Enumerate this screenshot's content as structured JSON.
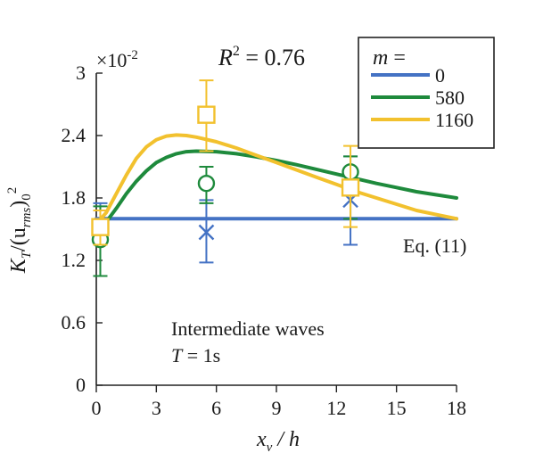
{
  "chart_data": {
    "type": "line",
    "xlabel_main": "x",
    "xlabel_sub": "v",
    "xlabel_rest": " / h",
    "ylabel_main": "K",
    "ylabel_sub": "T",
    "ylabel_mid": "/(u",
    "ylabel_sub2": "rms",
    "ylabel_end": ")",
    "ylabel_sub3": "0",
    "ylabel_sup": "2",
    "y_multiplier_base": "×10",
    "y_multiplier_exp": "-2",
    "r2_label_main": "R",
    "r2_label_sup": "2",
    "r2_label_rest": " = 0.76",
    "xlim": [
      0,
      18
    ],
    "ylim": [
      0,
      3
    ],
    "xticks": [
      "0",
      "3",
      "6",
      "9",
      "12",
      "15",
      "18"
    ],
    "yticks": [
      "0",
      "0.6",
      "1.2",
      "1.8",
      "2.4",
      "3"
    ],
    "legend": {
      "title_main": "m",
      "title_rest": " =",
      "placement": "top-right"
    },
    "series": [
      {
        "name": "0",
        "color": "#4472c4",
        "curve": [
          [
            0,
            1.6
          ],
          [
            18,
            1.6
          ]
        ],
        "marker": "x",
        "points": [
          {
            "x": 0.2,
            "y": 1.5,
            "lo": 1.05,
            "hi": 1.75
          },
          {
            "x": 5.5,
            "y": 1.47,
            "lo": 1.18,
            "hi": 1.78
          },
          {
            "x": 12.7,
            "y": 1.78,
            "lo": 1.35,
            "hi": 2.2
          }
        ]
      },
      {
        "name": "580",
        "color": "#1e8a3c",
        "curve": [
          [
            0,
            1.5
          ],
          [
            0.5,
            1.57
          ],
          [
            1,
            1.7
          ],
          [
            1.5,
            1.84
          ],
          [
            2,
            1.96
          ],
          [
            2.5,
            2.06
          ],
          [
            3,
            2.14
          ],
          [
            3.5,
            2.19
          ],
          [
            4,
            2.225
          ],
          [
            4.5,
            2.245
          ],
          [
            5,
            2.25
          ],
          [
            6,
            2.245
          ],
          [
            7,
            2.225
          ],
          [
            8,
            2.195
          ],
          [
            9,
            2.16
          ],
          [
            10,
            2.12
          ],
          [
            11,
            2.075
          ],
          [
            12,
            2.03
          ],
          [
            13,
            1.985
          ],
          [
            14,
            1.94
          ],
          [
            15,
            1.9
          ],
          [
            16,
            1.86
          ],
          [
            17,
            1.83
          ],
          [
            18,
            1.8
          ]
        ],
        "marker": "circle",
        "points": [
          {
            "x": 0.2,
            "y": 1.4,
            "lo": 1.05,
            "hi": 1.72
          },
          {
            "x": 5.5,
            "y": 1.94,
            "lo": 1.75,
            "hi": 2.1
          },
          {
            "x": 12.7,
            "y": 2.05,
            "lo": 1.6,
            "hi": 2.2
          }
        ]
      },
      {
        "name": "1160",
        "color": "#f2c12e",
        "curve": [
          [
            0,
            1.55
          ],
          [
            0.5,
            1.66
          ],
          [
            1,
            1.84
          ],
          [
            1.5,
            2.02
          ],
          [
            2,
            2.18
          ],
          [
            2.5,
            2.29
          ],
          [
            3,
            2.36
          ],
          [
            3.5,
            2.395
          ],
          [
            4,
            2.405
          ],
          [
            4.5,
            2.4
          ],
          [
            5,
            2.385
          ],
          [
            6,
            2.34
          ],
          [
            7,
            2.28
          ],
          [
            8,
            2.21
          ],
          [
            9,
            2.14
          ],
          [
            10,
            2.07
          ],
          [
            11,
            2.0
          ],
          [
            12,
            1.93
          ],
          [
            13,
            1.86
          ],
          [
            14,
            1.8
          ],
          [
            15,
            1.74
          ],
          [
            16,
            1.68
          ],
          [
            17,
            1.64
          ],
          [
            18,
            1.6
          ]
        ],
        "marker": "square",
        "points": [
          {
            "x": 0.2,
            "y": 1.52,
            "lo": 1.35,
            "hi": 1.68
          },
          {
            "x": 5.5,
            "y": 2.6,
            "lo": 2.25,
            "hi": 2.93
          },
          {
            "x": 12.7,
            "y": 1.9,
            "lo": 1.52,
            "hi": 2.3
          }
        ]
      }
    ],
    "annotations": {
      "eq_label": "Eq. (11)",
      "wave_label": "Intermediate waves",
      "period_main": "T",
      "period_rest": " = 1s"
    }
  }
}
